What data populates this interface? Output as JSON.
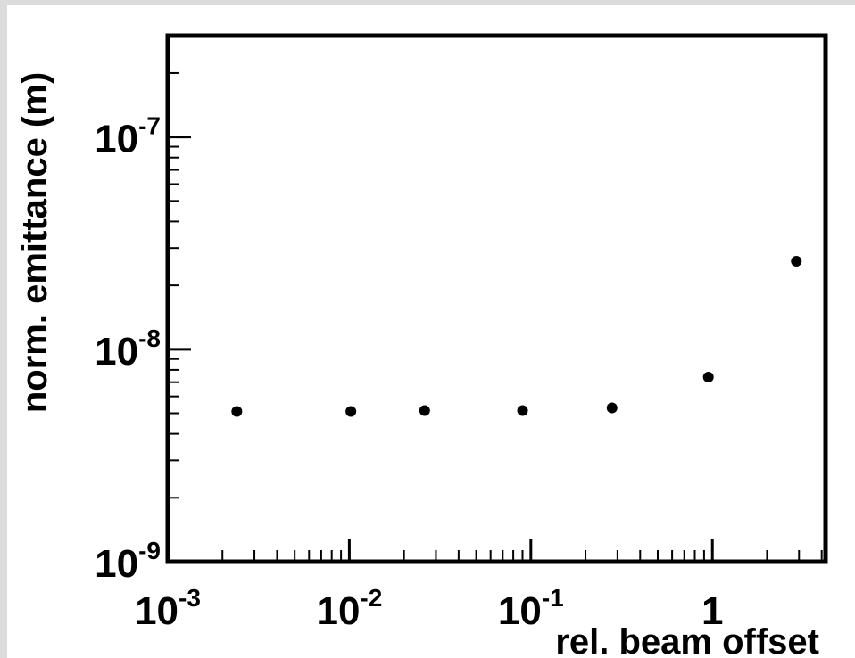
{
  "chart_data": {
    "type": "scatter",
    "title": "",
    "xlabel": "rel. beam offset",
    "ylabel": "norm. emittance (m)",
    "xscale": "log",
    "yscale": "log",
    "xlim": [
      0.001,
      4.2
    ],
    "ylim": [
      1e-09,
      3e-07
    ],
    "x_ticks": [
      {
        "value": 0.001,
        "base": "10",
        "exp": "-3"
      },
      {
        "value": 0.01,
        "base": "10",
        "exp": "-2"
      },
      {
        "value": 0.1,
        "base": "10",
        "exp": "-1"
      },
      {
        "value": 1,
        "base": "1",
        "exp": ""
      }
    ],
    "y_ticks": [
      {
        "value": 1e-09,
        "base": "10",
        "exp": "-9"
      },
      {
        "value": 1e-08,
        "base": "10",
        "exp": "-8"
      },
      {
        "value": 1e-07,
        "base": "10",
        "exp": "-7"
      }
    ],
    "grid": false,
    "legend": "none",
    "marker_color": "#000000",
    "points": [
      {
        "x": 0.0024,
        "y": 5.1e-09
      },
      {
        "x": 0.0102,
        "y": 5.1e-09
      },
      {
        "x": 0.026,
        "y": 5.15e-09
      },
      {
        "x": 0.09,
        "y": 5.15e-09
      },
      {
        "x": 0.28,
        "y": 5.3e-09
      },
      {
        "x": 0.95,
        "y": 7.4e-09
      },
      {
        "x": 2.9,
        "y": 2.6e-08
      }
    ]
  }
}
